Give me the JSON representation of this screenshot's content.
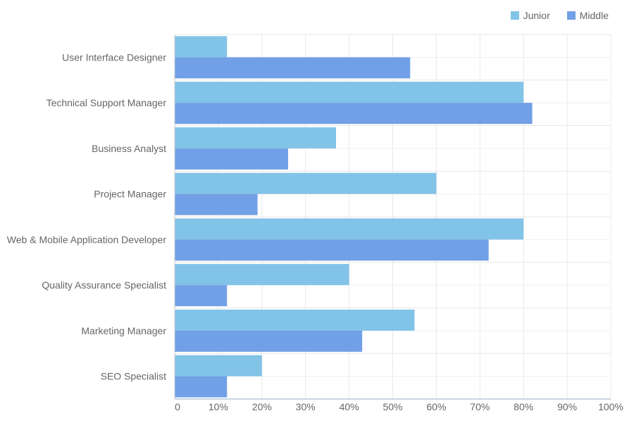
{
  "chart_data": {
    "type": "bar",
    "orientation": "horizontal",
    "categories": [
      "User Interface Designer",
      "Technical Support Manager",
      "Business Analyst",
      "Project Manager",
      "Web & Mobile Application Developer",
      "Quality Assurance Specialist",
      "Marketing Manager",
      "SEO Specialist"
    ],
    "series": [
      {
        "name": "Junior",
        "color": "#82c3e8",
        "values": [
          12,
          80,
          37,
          60,
          80,
          40,
          55,
          20
        ]
      },
      {
        "name": "Middle",
        "color": "#72a0e6",
        "values": [
          54,
          82,
          26,
          19,
          72,
          12,
          43,
          12
        ]
      }
    ],
    "xlim": [
      0,
      100
    ],
    "xticks": [
      "0",
      "10%",
      "20%",
      "30%",
      "40%",
      "50%",
      "60%",
      "70%",
      "80%",
      "90%",
      "100%"
    ],
    "title": "",
    "xlabel": "",
    "ylabel": "",
    "grid": true,
    "legend_position": "top-right"
  }
}
